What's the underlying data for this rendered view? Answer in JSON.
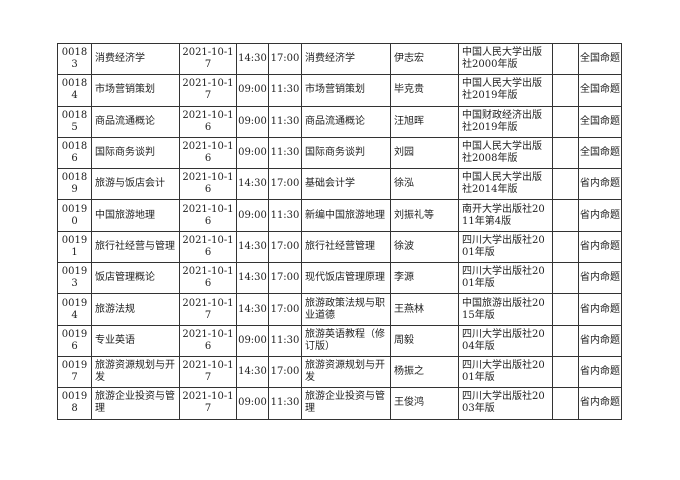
{
  "rows": [
    {
      "code": "00183",
      "course": "消费经济学",
      "date": "2021-10-17",
      "start": "14:30",
      "end": "17:00",
      "textbook": "消费经济学",
      "author": "伊志宏",
      "publisher": "中国人民大学出版社2000年版",
      "note": "",
      "type": "全国命题"
    },
    {
      "code": "00184",
      "course": "市场营销策划",
      "date": "2021-10-17",
      "start": "09:00",
      "end": "11:30",
      "textbook": "市场营销策划",
      "author": "毕克贵",
      "publisher": "中国人民大学出版社2019年版",
      "note": "",
      "type": "全国命题"
    },
    {
      "code": "00185",
      "course": "商品流通概论",
      "date": "2021-10-16",
      "start": "09:00",
      "end": "11:30",
      "textbook": "商品流通概论",
      "author": "汪旭晖",
      "publisher": "中国财政经济出版社2019年版",
      "note": "",
      "type": "全国命题"
    },
    {
      "code": "00186",
      "course": "国际商务谈判",
      "date": "2021-10-16",
      "start": "09:00",
      "end": "11:30",
      "textbook": "国际商务谈判",
      "author": "刘园",
      "publisher": "中国人民大学出版社2008年版",
      "note": "",
      "type": "全国命题"
    },
    {
      "code": "00189",
      "course": "旅游与饭店会计",
      "date": "2021-10-16",
      "start": "14:30",
      "end": "17:00",
      "textbook": "基础会计学",
      "author": "徐泓",
      "publisher": "中国人民大学出版社2014年版",
      "note": "",
      "type": "省内命题"
    },
    {
      "code": "00190",
      "course": "中国旅游地理",
      "date": "2021-10-16",
      "start": "09:00",
      "end": "11:30",
      "textbook": "新编中国旅游地理",
      "author": "刘振礼等",
      "publisher": "南开大学出版社2011年第4版",
      "note": "",
      "type": "省内命题"
    },
    {
      "code": "00191",
      "course": "旅行社经营与管理",
      "date": "2021-10-16",
      "start": "14:30",
      "end": "17:00",
      "textbook": "旅行社经营管理",
      "author": "徐波",
      "publisher": "四川大学出版社2001年版",
      "note": "",
      "type": "省内命题"
    },
    {
      "code": "00193",
      "course": "饭店管理概论",
      "date": "2021-10-16",
      "start": "14:30",
      "end": "17:00",
      "textbook": "现代饭店管理原理",
      "author": "李源",
      "publisher": "四川大学出版社2001年版",
      "note": "",
      "type": "省内命题"
    },
    {
      "code": "00194",
      "course": "旅游法规",
      "date": "2021-10-17",
      "start": "14:30",
      "end": "17:00",
      "textbook": "旅游政策法规与职业道德",
      "author": "王燕林",
      "publisher": "中国旅游出版社2015年版",
      "note": "",
      "type": "省内命题"
    },
    {
      "code": "00196",
      "course": "专业英语",
      "date": "2021-10-16",
      "start": "09:00",
      "end": "11:30",
      "textbook": "旅游英语教程（修订版）",
      "author": "周毅",
      "publisher": "四川大学出版社2004年版",
      "note": "",
      "type": "省内命题"
    },
    {
      "code": "00197",
      "course": "旅游资源规划与开发",
      "date": "2021-10-17",
      "start": "14:30",
      "end": "17:00",
      "textbook": "旅游资源规划与开发",
      "author": "杨振之",
      "publisher": "四川大学出版社2001年版",
      "note": "",
      "type": "省内命题"
    },
    {
      "code": "00198",
      "course": "旅游企业投资与管理",
      "date": "2021-10-17",
      "start": "09:00",
      "end": "11:30",
      "textbook": "旅游企业投资与管理",
      "author": "王俊鸿",
      "publisher": "四川大学出版社2003年版",
      "note": "",
      "type": "省内命题"
    }
  ]
}
